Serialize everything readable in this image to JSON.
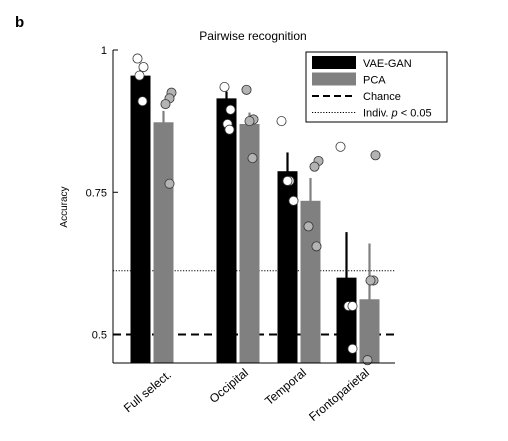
{
  "panel_letter": "b",
  "chart_data": {
    "type": "bar",
    "title": "Pairwise recognition",
    "ylabel": "Accuracy",
    "xlabel": "",
    "ylim": [
      0.45,
      1.0
    ],
    "yticks": [
      0.5,
      0.75,
      1
    ],
    "ytick_labels": [
      "0.5",
      "0.75",
      "1"
    ],
    "categories": [
      "Full select.",
      "Occipital",
      "Temporal",
      "Frontoparietal"
    ],
    "series": [
      {
        "name": "VAE-GAN",
        "color": "#000000",
        "point_fill": "#ffffff",
        "values": [
          0.955,
          0.915,
          0.787,
          0.6
        ],
        "error": [
          0.01,
          0.012,
          0.033,
          0.08
        ],
        "points": [
          [
            0.985,
            0.97,
            0.955,
            0.91
          ],
          [
            0.935,
            0.895,
            0.87,
            0.86
          ],
          [
            0.875,
            0.77,
            0.77,
            0.735
          ],
          [
            0.83,
            0.55,
            0.55,
            0.475
          ]
        ]
      },
      {
        "name": "PCA",
        "color": "#808080",
        "point_fill": "#b3b3b3",
        "values": [
          0.873,
          0.87,
          0.735,
          0.562
        ],
        "error": [
          0.02,
          0.02,
          0.04,
          0.098
        ],
        "points": [
          [
            0.925,
            0.915,
            0.905,
            0.765
          ],
          [
            0.93,
            0.878,
            0.875,
            0.81
          ],
          [
            0.805,
            0.795,
            0.69,
            0.655
          ],
          [
            0.815,
            0.595,
            0.595,
            0.455
          ]
        ]
      }
    ],
    "reference_lines": [
      {
        "name": "Chance",
        "value": 0.5,
        "style": "dashed"
      },
      {
        "name": "Indiv. p < 0.05",
        "value": 0.612,
        "style": "dotted"
      }
    ],
    "legend": {
      "placement": "top-right",
      "entries": [
        {
          "label": "VAE-GAN",
          "kind": "swatch",
          "color": "#000000"
        },
        {
          "label": "PCA",
          "kind": "swatch",
          "color": "#808080"
        },
        {
          "label": "Chance",
          "kind": "dashed"
        },
        {
          "label_prefix": "Indiv. ",
          "label_italic": "p",
          "label_suffix": " < 0.05",
          "kind": "dotted"
        }
      ]
    },
    "grid": false
  }
}
